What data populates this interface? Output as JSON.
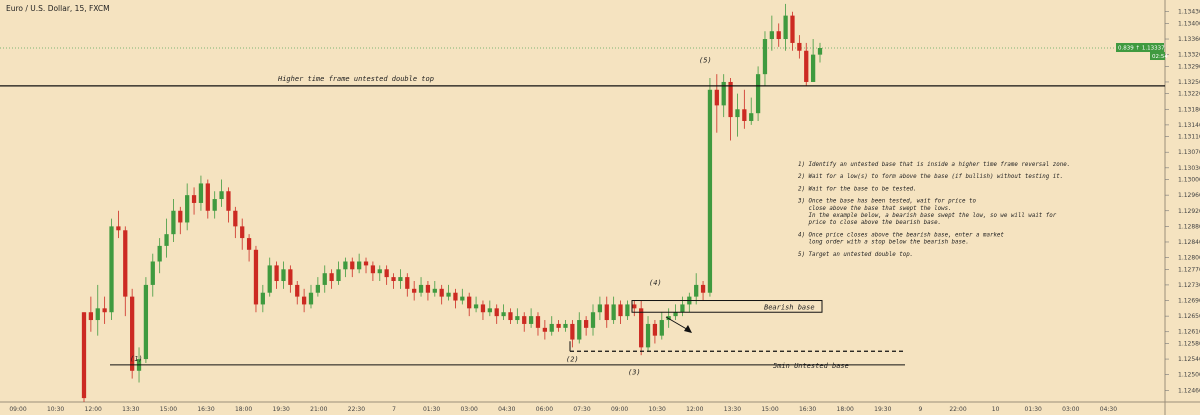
{
  "chart_data": {
    "type": "candlestick",
    "title": "Euro / U.S. Dollar, 15, FXCM",
    "ylim": [
      1.1243,
      1.1346
    ],
    "y_ticks": [
      "1.13430",
      "1.13400",
      "1.13360",
      "1.13320",
      "1.13290",
      "1.13250",
      "1.13220",
      "1.13180",
      "1.13140",
      "1.13110",
      "1.13070",
      "1.13030",
      "1.13000",
      "1.12960",
      "1.12920",
      "1.12880",
      "1.12840",
      "1.12800",
      "1.12770",
      "1.12730",
      "1.12690",
      "1.12650",
      "1.12610",
      "1.12580",
      "1.12540",
      "1.12500",
      "1.12460"
    ],
    "x_ticks": [
      "09:00",
      "10:30",
      "12:00",
      "13:30",
      "15:00",
      "16:30",
      "18:00",
      "19:30",
      "21:00",
      "22:30",
      "7",
      "01:30",
      "03:00",
      "04:30",
      "06:00",
      "07:30",
      "09:00",
      "10:30",
      "12:00",
      "13:30",
      "15:00",
      "16:30",
      "18:00",
      "19:30",
      "9",
      "22:00",
      "10",
      "01:30",
      "03:00",
      "04:30"
    ],
    "price_label": "0.839 ↑ 1.13337",
    "time_label": "02:54",
    "candles": [
      [
        1.1266,
        1.1244,
        1.1266,
        1.1243
      ],
      [
        1.1266,
        1.1264,
        1.127,
        1.1261
      ],
      [
        1.1264,
        1.1267,
        1.1273,
        1.126
      ],
      [
        1.1267,
        1.1266,
        1.127,
        1.1263
      ],
      [
        1.1266,
        1.1288,
        1.129,
        1.1264
      ],
      [
        1.1288,
        1.1287,
        1.1292,
        1.1285
      ],
      [
        1.1287,
        1.127,
        1.1288,
        1.1265
      ],
      [
        1.127,
        1.1251,
        1.1272,
        1.1249
      ],
      [
        1.1251,
        1.1254,
        1.1257,
        1.1248
      ],
      [
        1.1254,
        1.1273,
        1.1275,
        1.1253
      ],
      [
        1.1273,
        1.1279,
        1.1281,
        1.127
      ],
      [
        1.1279,
        1.1283,
        1.1285,
        1.1276
      ],
      [
        1.1283,
        1.1286,
        1.129,
        1.128
      ],
      [
        1.1286,
        1.1292,
        1.1295,
        1.1284
      ],
      [
        1.1292,
        1.1289,
        1.1293,
        1.1286
      ],
      [
        1.1289,
        1.1296,
        1.1299,
        1.1287
      ],
      [
        1.1296,
        1.1294,
        1.1298,
        1.1291
      ],
      [
        1.1294,
        1.1299,
        1.1301,
        1.1292
      ],
      [
        1.1299,
        1.1292,
        1.13,
        1.129
      ],
      [
        1.1292,
        1.1295,
        1.1297,
        1.129
      ],
      [
        1.1295,
        1.1297,
        1.13,
        1.1293
      ],
      [
        1.1297,
        1.1292,
        1.1298,
        1.1289
      ],
      [
        1.1292,
        1.1288,
        1.1293,
        1.1285
      ],
      [
        1.1288,
        1.1285,
        1.129,
        1.1282
      ],
      [
        1.1285,
        1.1282,
        1.1286,
        1.1279
      ],
      [
        1.1282,
        1.1268,
        1.1283,
        1.1266
      ],
      [
        1.1268,
        1.1271,
        1.1273,
        1.1266
      ],
      [
        1.1271,
        1.1278,
        1.128,
        1.127
      ],
      [
        1.1278,
        1.1274,
        1.1279,
        1.1272
      ],
      [
        1.1274,
        1.1277,
        1.1279,
        1.1272
      ],
      [
        1.1277,
        1.1273,
        1.1278,
        1.1271
      ],
      [
        1.1273,
        1.127,
        1.1274,
        1.1268
      ],
      [
        1.127,
        1.1268,
        1.1272,
        1.1266
      ],
      [
        1.1268,
        1.1271,
        1.1273,
        1.1267
      ],
      [
        1.1271,
        1.1273,
        1.1275,
        1.127
      ],
      [
        1.1273,
        1.1276,
        1.1278,
        1.1271
      ],
      [
        1.1276,
        1.1274,
        1.1277,
        1.1272
      ],
      [
        1.1274,
        1.1277,
        1.1279,
        1.1273
      ],
      [
        1.1277,
        1.1279,
        1.128,
        1.1275
      ],
      [
        1.1279,
        1.1277,
        1.128,
        1.1275
      ],
      [
        1.1277,
        1.1279,
        1.1281,
        1.1276
      ],
      [
        1.1279,
        1.1278,
        1.128,
        1.1276
      ],
      [
        1.1278,
        1.1276,
        1.1279,
        1.1274
      ],
      [
        1.1276,
        1.1277,
        1.1278,
        1.1274
      ],
      [
        1.1277,
        1.1275,
        1.1278,
        1.1273
      ],
      [
        1.1275,
        1.1274,
        1.1276,
        1.1272
      ],
      [
        1.1274,
        1.1275,
        1.1277,
        1.1272
      ],
      [
        1.1275,
        1.1272,
        1.1276,
        1.127
      ],
      [
        1.1272,
        1.1271,
        1.1274,
        1.1269
      ],
      [
        1.1271,
        1.1273,
        1.1275,
        1.127
      ],
      [
        1.1273,
        1.1271,
        1.1274,
        1.1269
      ],
      [
        1.1271,
        1.1272,
        1.1274,
        1.127
      ],
      [
        1.1272,
        1.127,
        1.1273,
        1.1268
      ],
      [
        1.127,
        1.1271,
        1.1273,
        1.1269
      ],
      [
        1.1271,
        1.1269,
        1.1272,
        1.1267
      ],
      [
        1.1269,
        1.127,
        1.1272,
        1.1268
      ],
      [
        1.127,
        1.1267,
        1.1271,
        1.1265
      ],
      [
        1.1267,
        1.1268,
        1.127,
        1.1266
      ],
      [
        1.1268,
        1.1266,
        1.1269,
        1.1264
      ],
      [
        1.1266,
        1.1267,
        1.1269,
        1.1265
      ],
      [
        1.1267,
        1.1265,
        1.1268,
        1.1263
      ],
      [
        1.1265,
        1.1266,
        1.1268,
        1.1264
      ],
      [
        1.1266,
        1.1264,
        1.1267,
        1.1263
      ],
      [
        1.1264,
        1.1265,
        1.1267,
        1.1263
      ],
      [
        1.1265,
        1.1263,
        1.1266,
        1.1261
      ],
      [
        1.1263,
        1.1265,
        1.1267,
        1.1262
      ],
      [
        1.1265,
        1.1262,
        1.1266,
        1.126
      ],
      [
        1.1262,
        1.1261,
        1.1264,
        1.1259
      ],
      [
        1.1261,
        1.1263,
        1.1265,
        1.126
      ],
      [
        1.1263,
        1.1262,
        1.1264,
        1.1261
      ],
      [
        1.1262,
        1.1263,
        1.1264,
        1.1261
      ],
      [
        1.1263,
        1.1259,
        1.1264,
        1.1257
      ],
      [
        1.1259,
        1.1264,
        1.1266,
        1.1258
      ],
      [
        1.1264,
        1.1262,
        1.1265,
        1.126
      ],
      [
        1.1262,
        1.1266,
        1.1268,
        1.126
      ],
      [
        1.1266,
        1.1268,
        1.127,
        1.1264
      ],
      [
        1.1268,
        1.1264,
        1.127,
        1.1262
      ],
      [
        1.1264,
        1.1268,
        1.127,
        1.1263
      ],
      [
        1.1268,
        1.1265,
        1.1269,
        1.1263
      ],
      [
        1.1265,
        1.1268,
        1.1269,
        1.1264
      ],
      [
        1.1268,
        1.1267,
        1.1269,
        1.1265
      ],
      [
        1.1267,
        1.1257,
        1.1269,
        1.1255
      ],
      [
        1.1257,
        1.1263,
        1.1265,
        1.1256
      ],
      [
        1.1263,
        1.126,
        1.1264,
        1.1258
      ],
      [
        1.126,
        1.1264,
        1.1266,
        1.1259
      ],
      [
        1.1264,
        1.1265,
        1.1267,
        1.1262
      ],
      [
        1.1265,
        1.1266,
        1.1268,
        1.1264
      ],
      [
        1.1266,
        1.1268,
        1.127,
        1.1265
      ],
      [
        1.1268,
        1.127,
        1.1271,
        1.1266
      ],
      [
        1.127,
        1.1273,
        1.1276,
        1.1268
      ],
      [
        1.1273,
        1.1271,
        1.1274,
        1.1269
      ],
      [
        1.1271,
        1.1323,
        1.1326,
        1.127
      ],
      [
        1.1323,
        1.1319,
        1.1327,
        1.1312
      ],
      [
        1.1319,
        1.1325,
        1.1327,
        1.1316
      ],
      [
        1.1325,
        1.1316,
        1.1326,
        1.131
      ],
      [
        1.1316,
        1.1318,
        1.1322,
        1.1311
      ],
      [
        1.1318,
        1.1315,
        1.1323,
        1.1313
      ],
      [
        1.1315,
        1.1317,
        1.1321,
        1.1314
      ],
      [
        1.1317,
        1.1327,
        1.1329,
        1.1315
      ],
      [
        1.1327,
        1.1336,
        1.1338,
        1.1324
      ],
      [
        1.1336,
        1.1338,
        1.1342,
        1.1333
      ],
      [
        1.1338,
        1.1336,
        1.134,
        1.1334
      ],
      [
        1.1336,
        1.1342,
        1.1345,
        1.1333
      ],
      [
        1.1342,
        1.1335,
        1.1343,
        1.1333
      ],
      [
        1.1335,
        1.1333,
        1.1337,
        1.1331
      ],
      [
        1.1333,
        1.1325,
        1.1335,
        1.1324
      ],
      [
        1.1325,
        1.1332,
        1.1336,
        1.1325
      ],
      [
        1.1332,
        1.13337,
        1.1335,
        1.133
      ]
    ],
    "annotations": {
      "label_1": "(1)",
      "label_2": "(2)",
      "label_3": "(3)",
      "label_4": "(4)",
      "label_5": "(5)",
      "double_top": "Higher time frame untested double top",
      "bearish_base": "Bearish base",
      "untested_base": "5min Untested base",
      "steps": [
        "1) Identify an untested base that is inside a higher time frame reversal zone.",
        "",
        "2) Wait for a low(s) to form above the base (if bullish) without testing it.",
        "",
        "2) Wait for the base to be tested.",
        "",
        "3) Once the base has been tested, wait for price to",
        "   close above the base that swept the lows.",
        "   In the example below, a bearish base swept the low, so we will wait for",
        "   price to close above the bearish base.",
        "",
        "4) Once price closes above the bearish base, enter a market",
        "   long order with a stop below the bearish base.",
        "",
        "5) Target an untested double top."
      ]
    },
    "colors": {
      "background": "#f5e3c0",
      "up": "#3f9a3f",
      "down": "#cc2a22",
      "price_tag": "#3f9a3f"
    }
  }
}
